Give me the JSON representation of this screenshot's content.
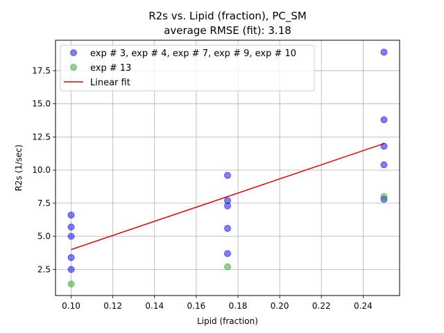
{
  "chart_data": {
    "type": "scatter",
    "title": "R2s vs. Lipid (fraction), PC_SM",
    "subtitle": "average RMSE (fit): 3.18",
    "xlabel": "Lipid (fraction)",
    "ylabel": "R2s (1/sec)",
    "xlim": [
      0.0925,
      0.2575
    ],
    "ylim": [
      0.53,
      19.8
    ],
    "xticks": [
      0.1,
      0.12,
      0.14,
      0.16,
      0.18,
      0.2,
      0.22,
      0.24
    ],
    "xtick_labels": [
      "0.10",
      "0.12",
      "0.14",
      "0.16",
      "0.18",
      "0.20",
      "0.22",
      "0.24"
    ],
    "yticks": [
      2.5,
      5.0,
      7.5,
      10.0,
      12.5,
      15.0,
      17.5
    ],
    "ytick_labels": [
      "2.5",
      "5.0",
      "7.5",
      "10.0",
      "12.5",
      "15.0",
      "17.5"
    ],
    "grid": true,
    "legend_position": "top-left",
    "series": [
      {
        "name": "exp # 3, exp # 4, exp # 7, exp # 9, exp # 10",
        "kind": "scatter",
        "color": "#0000ee",
        "points": [
          {
            "x": 0.1,
            "y": 6.6
          },
          {
            "x": 0.1,
            "y": 5.7
          },
          {
            "x": 0.1,
            "y": 5.0
          },
          {
            "x": 0.1,
            "y": 3.4
          },
          {
            "x": 0.1,
            "y": 2.5
          },
          {
            "x": 0.175,
            "y": 9.6
          },
          {
            "x": 0.175,
            "y": 7.7
          },
          {
            "x": 0.175,
            "y": 7.3
          },
          {
            "x": 0.175,
            "y": 5.6
          },
          {
            "x": 0.175,
            "y": 3.7
          },
          {
            "x": 0.25,
            "y": 18.9
          },
          {
            "x": 0.25,
            "y": 13.8
          },
          {
            "x": 0.25,
            "y": 11.8
          },
          {
            "x": 0.25,
            "y": 10.4
          },
          {
            "x": 0.25,
            "y": 7.8
          }
        ]
      },
      {
        "name": "exp # 13",
        "kind": "scatter",
        "color": "#2ca02c",
        "points": [
          {
            "x": 0.1,
            "y": 1.4
          },
          {
            "x": 0.175,
            "y": 2.7
          },
          {
            "x": 0.25,
            "y": 8.0
          }
        ]
      },
      {
        "name": "Linear fit",
        "kind": "line",
        "color": "#ee0000",
        "points": [
          {
            "x": 0.1,
            "y": 4.0
          },
          {
            "x": 0.25,
            "y": 12.0
          }
        ]
      }
    ]
  }
}
